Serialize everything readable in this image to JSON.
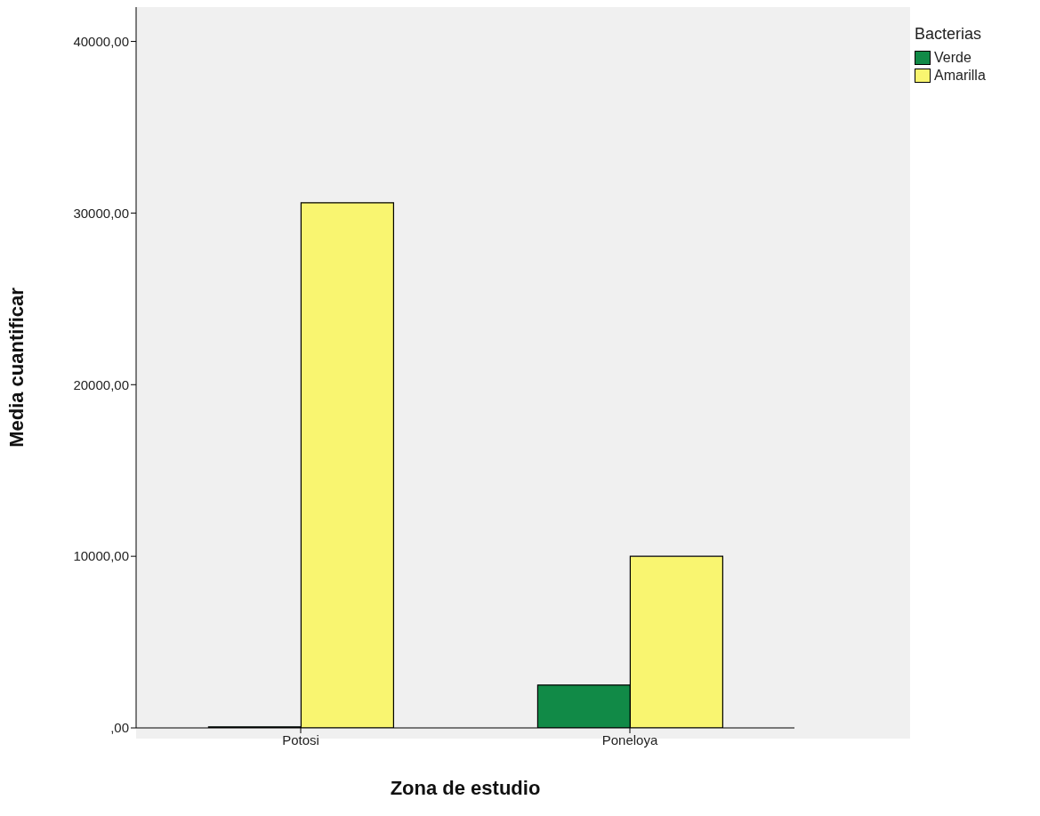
{
  "chart_data": {
    "type": "bar",
    "xlabel": "Zona de estudio",
    "ylabel": "Media cuantificar",
    "legend_title": "Bacterias",
    "legend": "top right",
    "grid": false,
    "categories": [
      "Potosi",
      "Poneloya"
    ],
    "series": [
      {
        "name": "Verde",
        "color": "#118a47",
        "values": [
          60,
          2500
        ]
      },
      {
        "name": "Amarilla",
        "color": "#f9f570",
        "values": [
          30600,
          10000
        ]
      }
    ],
    "ylim": [
      0,
      42000
    ],
    "yticks": [
      {
        "value": 0,
        "label": ",00"
      },
      {
        "value": 10000,
        "label": "10000,00"
      },
      {
        "value": 20000,
        "label": "20000,00"
      },
      {
        "value": 30000,
        "label": "30000,00"
      },
      {
        "value": 40000,
        "label": "40000,00"
      }
    ]
  }
}
